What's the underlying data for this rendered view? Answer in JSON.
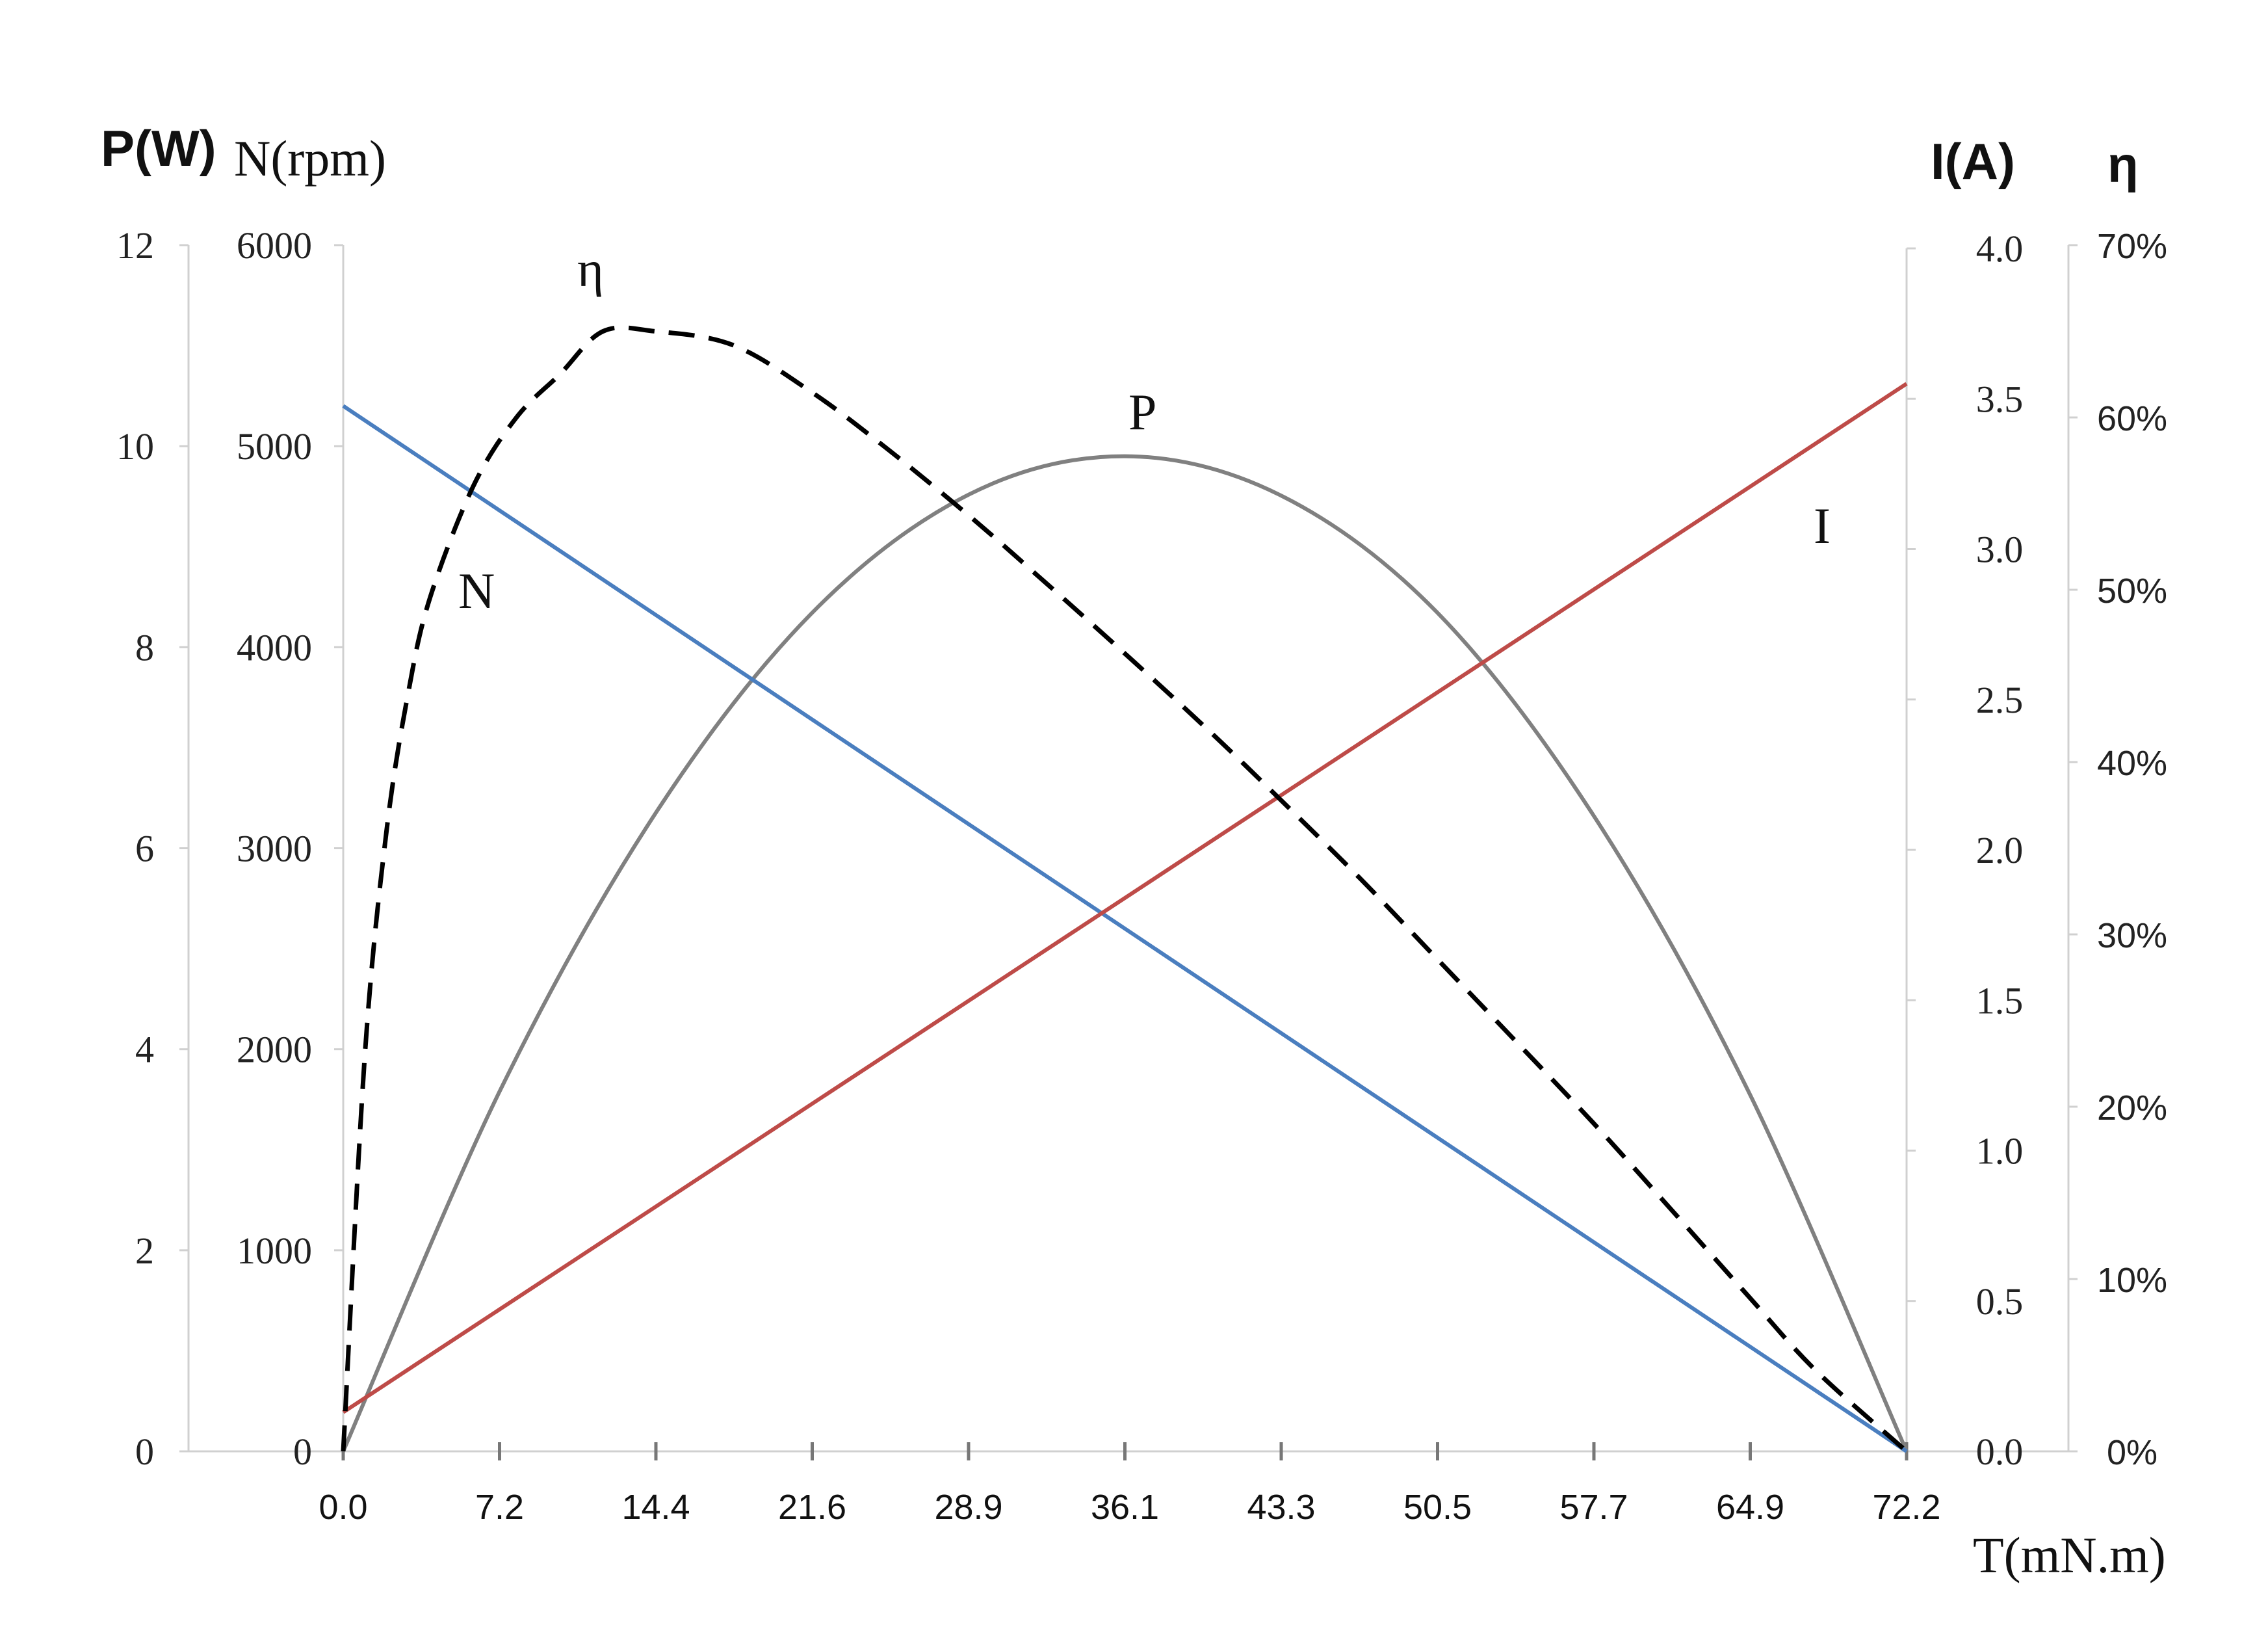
{
  "chart_data": {
    "type": "line",
    "x_label": "T(mN.m)",
    "x_ticks": [
      "0.0",
      "7.2",
      "14.4",
      "21.6",
      "28.9",
      "36.1",
      "43.3",
      "50.5",
      "57.7",
      "64.9",
      "72.2"
    ],
    "xlim": [
      0,
      72.2
    ],
    "axes": {
      "P": {
        "title": "P(W)",
        "ylim": [
          0,
          12
        ],
        "ticks": [
          "0",
          "2",
          "4",
          "6",
          "8",
          "10",
          "12"
        ]
      },
      "N": {
        "title": "N(rpm)",
        "ylim": [
          0,
          6000
        ],
        "ticks": [
          "0",
          "1000",
          "2000",
          "3000",
          "4000",
          "5000",
          "6000"
        ]
      },
      "I": {
        "title": "I(A)",
        "ylim": [
          0,
          4.0
        ],
        "ticks": [
          "0.0",
          "0.5",
          "1.0",
          "1.5",
          "2.0",
          "2.5",
          "3.0",
          "3.5",
          "4.0"
        ]
      },
      "eta": {
        "title": "η",
        "ylim": [
          0,
          70
        ],
        "ticks": [
          "0%",
          "10%",
          "20%",
          "30%",
          "40%",
          "50%",
          "60%",
          "70%"
        ]
      }
    },
    "series": [
      {
        "name": "N",
        "axis": "N",
        "color": "#4a7ebf",
        "style": "solid",
        "x": [
          0,
          72.2
        ],
        "y": [
          5200,
          0
        ]
      },
      {
        "name": "I",
        "axis": "I",
        "color": "#be4b48",
        "style": "solid",
        "x": [
          0,
          72.2
        ],
        "y": [
          0.13,
          3.55
        ]
      },
      {
        "name": "P",
        "axis": "P",
        "color": "#808080",
        "style": "solid",
        "x": [
          0,
          7.2,
          14.4,
          21.6,
          28.9,
          36.1,
          43.3,
          50.5,
          57.7,
          64.9,
          72.2
        ],
        "y": [
          0,
          3.57,
          6.34,
          8.33,
          9.52,
          9.9,
          9.51,
          8.35,
          6.34,
          3.58,
          0
        ]
      },
      {
        "name": "η",
        "axis": "eta",
        "color": "#000000",
        "style": "dashed",
        "x": [
          0,
          1,
          2,
          3,
          4,
          6,
          8,
          10,
          12,
          14.4,
          18,
          21.6,
          25,
          28.9,
          32,
          36.1,
          40,
          43.3,
          47,
          50.5,
          54,
          57.7,
          61,
          64.9,
          68,
          72.2
        ],
        "y": [
          0,
          23,
          36,
          44,
          49.5,
          56,
          60,
          62.5,
          65,
          65,
          64.2,
          61.5,
          58.3,
          54.3,
          50.9,
          46.3,
          41.8,
          37.8,
          33.2,
          28.6,
          24,
          19.1,
          14.5,
          9,
          4.7,
          0
        ]
      }
    ]
  }
}
